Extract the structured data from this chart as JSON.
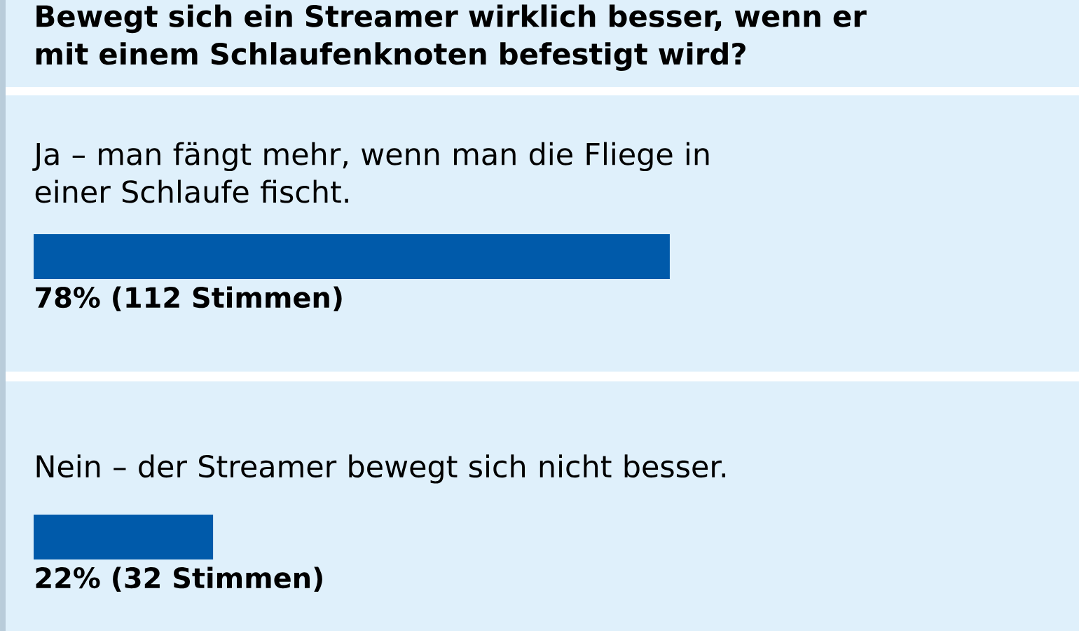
{
  "chart_data": {
    "type": "bar",
    "orientation": "horizontal",
    "title": "Bewegt sich ein Streamer wirklich besser, wenn er mit einem Schlaufenknoten befestigt wird?",
    "categories": [
      "Ja – man fängt mehr, wenn man die Fliege in einer Schlaufe fischt.",
      "Nein – der Streamer bewegt sich nicht besser."
    ],
    "values": [
      78,
      22
    ],
    "value_labels": [
      "78% (112 Stimmen)",
      "22% (32 Stimmen)"
    ],
    "color": "#005aaa"
  }
}
